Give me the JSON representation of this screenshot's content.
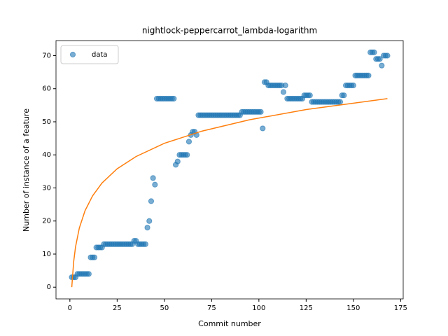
{
  "chart_data": {
    "type": "scatter",
    "title": "nightlock-peppercarrot_lambda-logarithm",
    "x_label": "Commit number",
    "y_label": "Number of instance of a feature",
    "xlim": [
      -7.35,
      176.35
    ],
    "ylim": [
      -3.55,
      74.55
    ],
    "xticks": [
      0,
      25,
      50,
      75,
      100,
      125,
      150,
      175
    ],
    "yticks": [
      0,
      10,
      20,
      30,
      40,
      50,
      60,
      70
    ],
    "legend": "upper left",
    "series": [
      {
        "name": "data",
        "type": "scatter",
        "color": "#1f77b4",
        "x": [
          1,
          2,
          3,
          4,
          5,
          6,
          7,
          8,
          9,
          10,
          11,
          12,
          13,
          14,
          15,
          16,
          17,
          18,
          19,
          20,
          21,
          22,
          23,
          24,
          25,
          26,
          27,
          28,
          29,
          30,
          31,
          32,
          33,
          34,
          35,
          36,
          37,
          38,
          39,
          40,
          41,
          42,
          43,
          44,
          45,
          46,
          47,
          48,
          49,
          50,
          51,
          52,
          53,
          54,
          55,
          56,
          57,
          58,
          59,
          60,
          61,
          62,
          63,
          64,
          65,
          66,
          67,
          68,
          69,
          70,
          71,
          72,
          73,
          74,
          75,
          76,
          77,
          78,
          79,
          80,
          81,
          82,
          83,
          84,
          85,
          86,
          87,
          88,
          89,
          90,
          91,
          92,
          93,
          94,
          95,
          96,
          97,
          98,
          99,
          100,
          101,
          102,
          103,
          104,
          105,
          106,
          107,
          108,
          109,
          110,
          111,
          112,
          113,
          114,
          115,
          116,
          117,
          118,
          119,
          120,
          121,
          122,
          123,
          124,
          125,
          126,
          127,
          128,
          129,
          130,
          131,
          132,
          133,
          134,
          135,
          136,
          137,
          138,
          139,
          140,
          141,
          142,
          143,
          144,
          145,
          146,
          147,
          148,
          149,
          150,
          151,
          152,
          153,
          154,
          155,
          156,
          157,
          158,
          159,
          160,
          161,
          162,
          163,
          164,
          165,
          166,
          167,
          168
        ],
        "values": [
          3,
          3,
          3,
          4,
          4,
          4,
          4,
          4,
          4,
          4,
          9,
          9,
          9,
          12,
          12,
          12,
          12,
          13,
          13,
          13,
          13,
          13,
          13,
          13,
          13,
          13,
          13,
          13,
          13,
          13,
          13,
          13,
          13,
          14,
          14,
          13,
          13,
          13,
          13,
          13,
          18,
          20,
          26,
          33,
          31,
          57,
          57,
          57,
          57,
          57,
          57,
          57,
          57,
          57,
          57,
          37,
          38,
          40,
          40,
          40,
          40,
          40,
          44,
          46,
          47,
          47,
          46,
          52,
          52,
          52,
          52,
          52,
          52,
          52,
          52,
          52,
          52,
          52,
          52,
          52,
          52,
          52,
          52,
          52,
          52,
          52,
          52,
          52,
          52,
          52,
          53,
          53,
          53,
          53,
          53,
          53,
          53,
          53,
          53,
          53,
          53,
          48,
          62,
          62,
          61,
          61,
          61,
          61,
          61,
          61,
          61,
          61,
          59,
          61,
          57,
          57,
          57,
          57,
          57,
          57,
          57,
          57,
          57,
          58,
          58,
          58,
          58,
          56,
          56,
          56,
          56,
          56,
          56,
          56,
          56,
          56,
          56,
          56,
          56,
          56,
          56,
          56,
          56,
          58,
          58,
          61,
          61,
          61,
          61,
          61,
          64,
          64,
          64,
          64,
          64,
          64,
          64,
          64,
          71,
          71,
          71,
          69,
          69,
          69,
          67,
          70,
          70,
          70
        ]
      },
      {
        "type": "line",
        "color": "#ff7f0e",
        "x": [
          1,
          2,
          3,
          5,
          8,
          12,
          17,
          25,
          35,
          50,
          70,
          95,
          125,
          168
        ],
        "values": [
          0,
          7.71,
          12.22,
          17.9,
          23.1,
          27.6,
          31.5,
          35.8,
          39.5,
          43.5,
          47.2,
          50.6,
          53.7,
          57.0
        ]
      }
    ]
  }
}
